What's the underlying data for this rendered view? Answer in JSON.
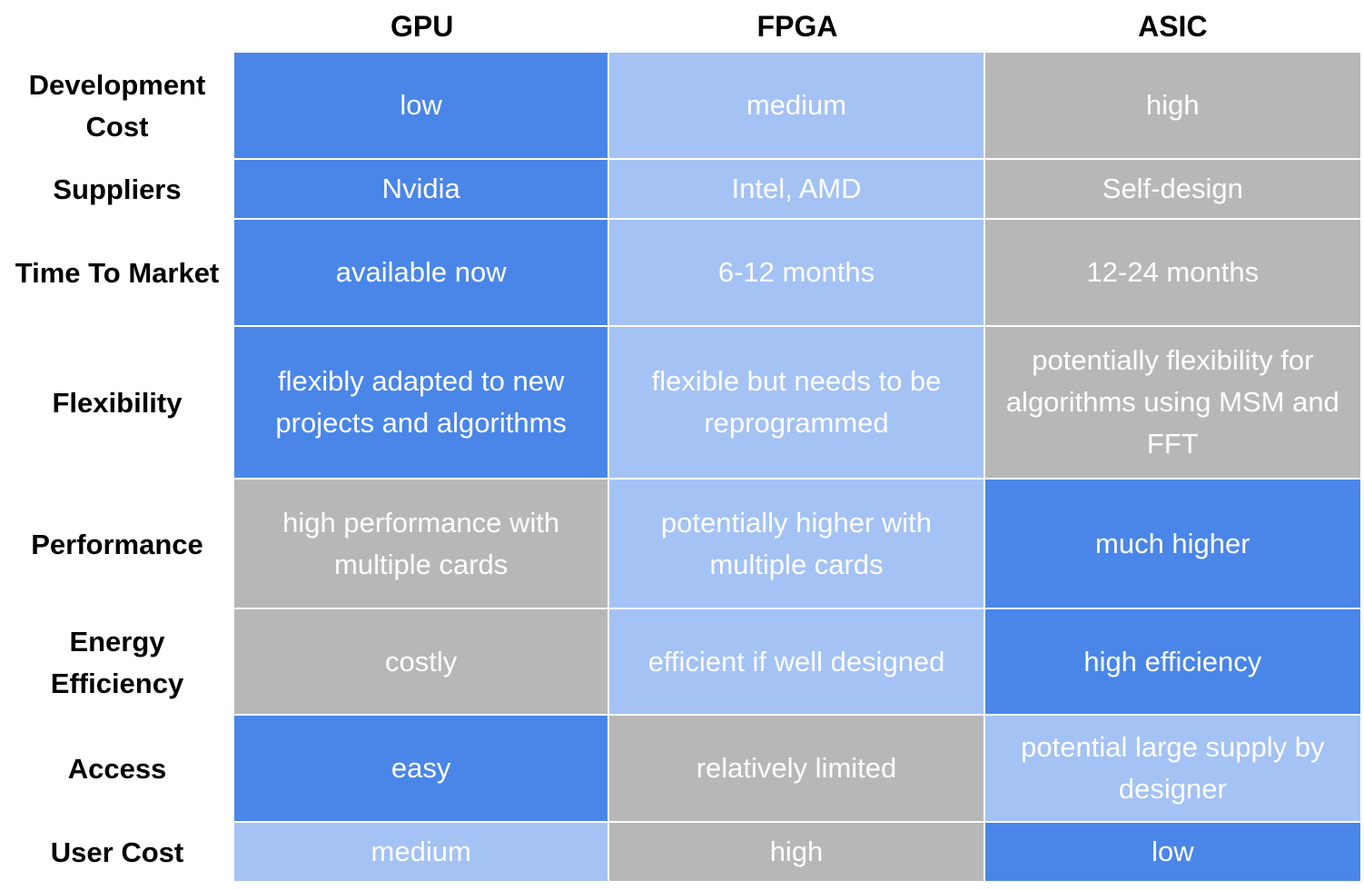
{
  "columns": [
    "GPU",
    "FPGA",
    "ASIC"
  ],
  "colors": {
    "dark_blue": "#4a86e8",
    "light_blue": "#a4c2f4",
    "gray": "#b7b7b7"
  },
  "rows": [
    {
      "label": "Development Cost",
      "cells": [
        {
          "text": "low",
          "color": "dark_blue"
        },
        {
          "text": "medium",
          "color": "light_blue"
        },
        {
          "text": "high",
          "color": "gray"
        }
      ]
    },
    {
      "label": "Suppliers",
      "cells": [
        {
          "text": "Nvidia",
          "color": "dark_blue"
        },
        {
          "text": "Intel, AMD",
          "color": "light_blue"
        },
        {
          "text": "Self-design",
          "color": "gray"
        }
      ]
    },
    {
      "label": "Time To Market",
      "cells": [
        {
          "text": "available now",
          "color": "dark_blue"
        },
        {
          "text": "6-12 months",
          "color": "light_blue"
        },
        {
          "text": "12-24 months",
          "color": "gray"
        }
      ]
    },
    {
      "label": "Flexibility",
      "cells": [
        {
          "text": "flexibly adapted to new projects and algorithms",
          "color": "dark_blue"
        },
        {
          "text": "flexible but needs to be reprogrammed",
          "color": "light_blue"
        },
        {
          "text": "potentially flexibility for algorithms using MSM and FFT",
          "color": "gray"
        }
      ]
    },
    {
      "label": "Performance",
      "cells": [
        {
          "text": "high performance with multiple cards",
          "color": "gray"
        },
        {
          "text": "potentially higher with multiple cards",
          "color": "light_blue"
        },
        {
          "text": "much higher",
          "color": "dark_blue"
        }
      ]
    },
    {
      "label": "Energy Efficiency",
      "cells": [
        {
          "text": "costly",
          "color": "gray"
        },
        {
          "text": "efficient if well designed",
          "color": "light_blue"
        },
        {
          "text": "high efficiency",
          "color": "dark_blue"
        }
      ]
    },
    {
      "label": "Access",
      "cells": [
        {
          "text": "easy",
          "color": "dark_blue"
        },
        {
          "text": "relatively limited",
          "color": "gray"
        },
        {
          "text": "potential large supply by designer",
          "color": "light_blue"
        }
      ]
    },
    {
      "label": "User Cost",
      "cells": [
        {
          "text": "medium",
          "color": "light_blue"
        },
        {
          "text": "high",
          "color": "gray"
        },
        {
          "text": "low",
          "color": "dark_blue"
        }
      ]
    }
  ]
}
